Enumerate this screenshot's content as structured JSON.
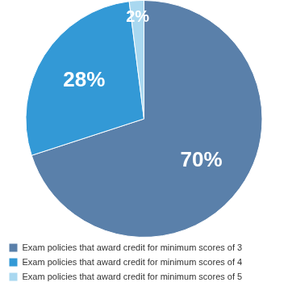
{
  "chart_data": {
    "type": "pie",
    "categories": [
      "Exam policies that award credit for minimum scores of 3",
      "Exam policies that award credit for minimum scores of 4",
      "Exam policies that award credit for minimum scores of 5"
    ],
    "values": [
      70,
      28,
      2
    ],
    "value_labels": [
      "70%",
      "28%",
      "2%"
    ],
    "colors": [
      "#5a80aa",
      "#3399d6",
      "#a9d8f0"
    ],
    "data_labels": true,
    "legend": "bottom"
  }
}
